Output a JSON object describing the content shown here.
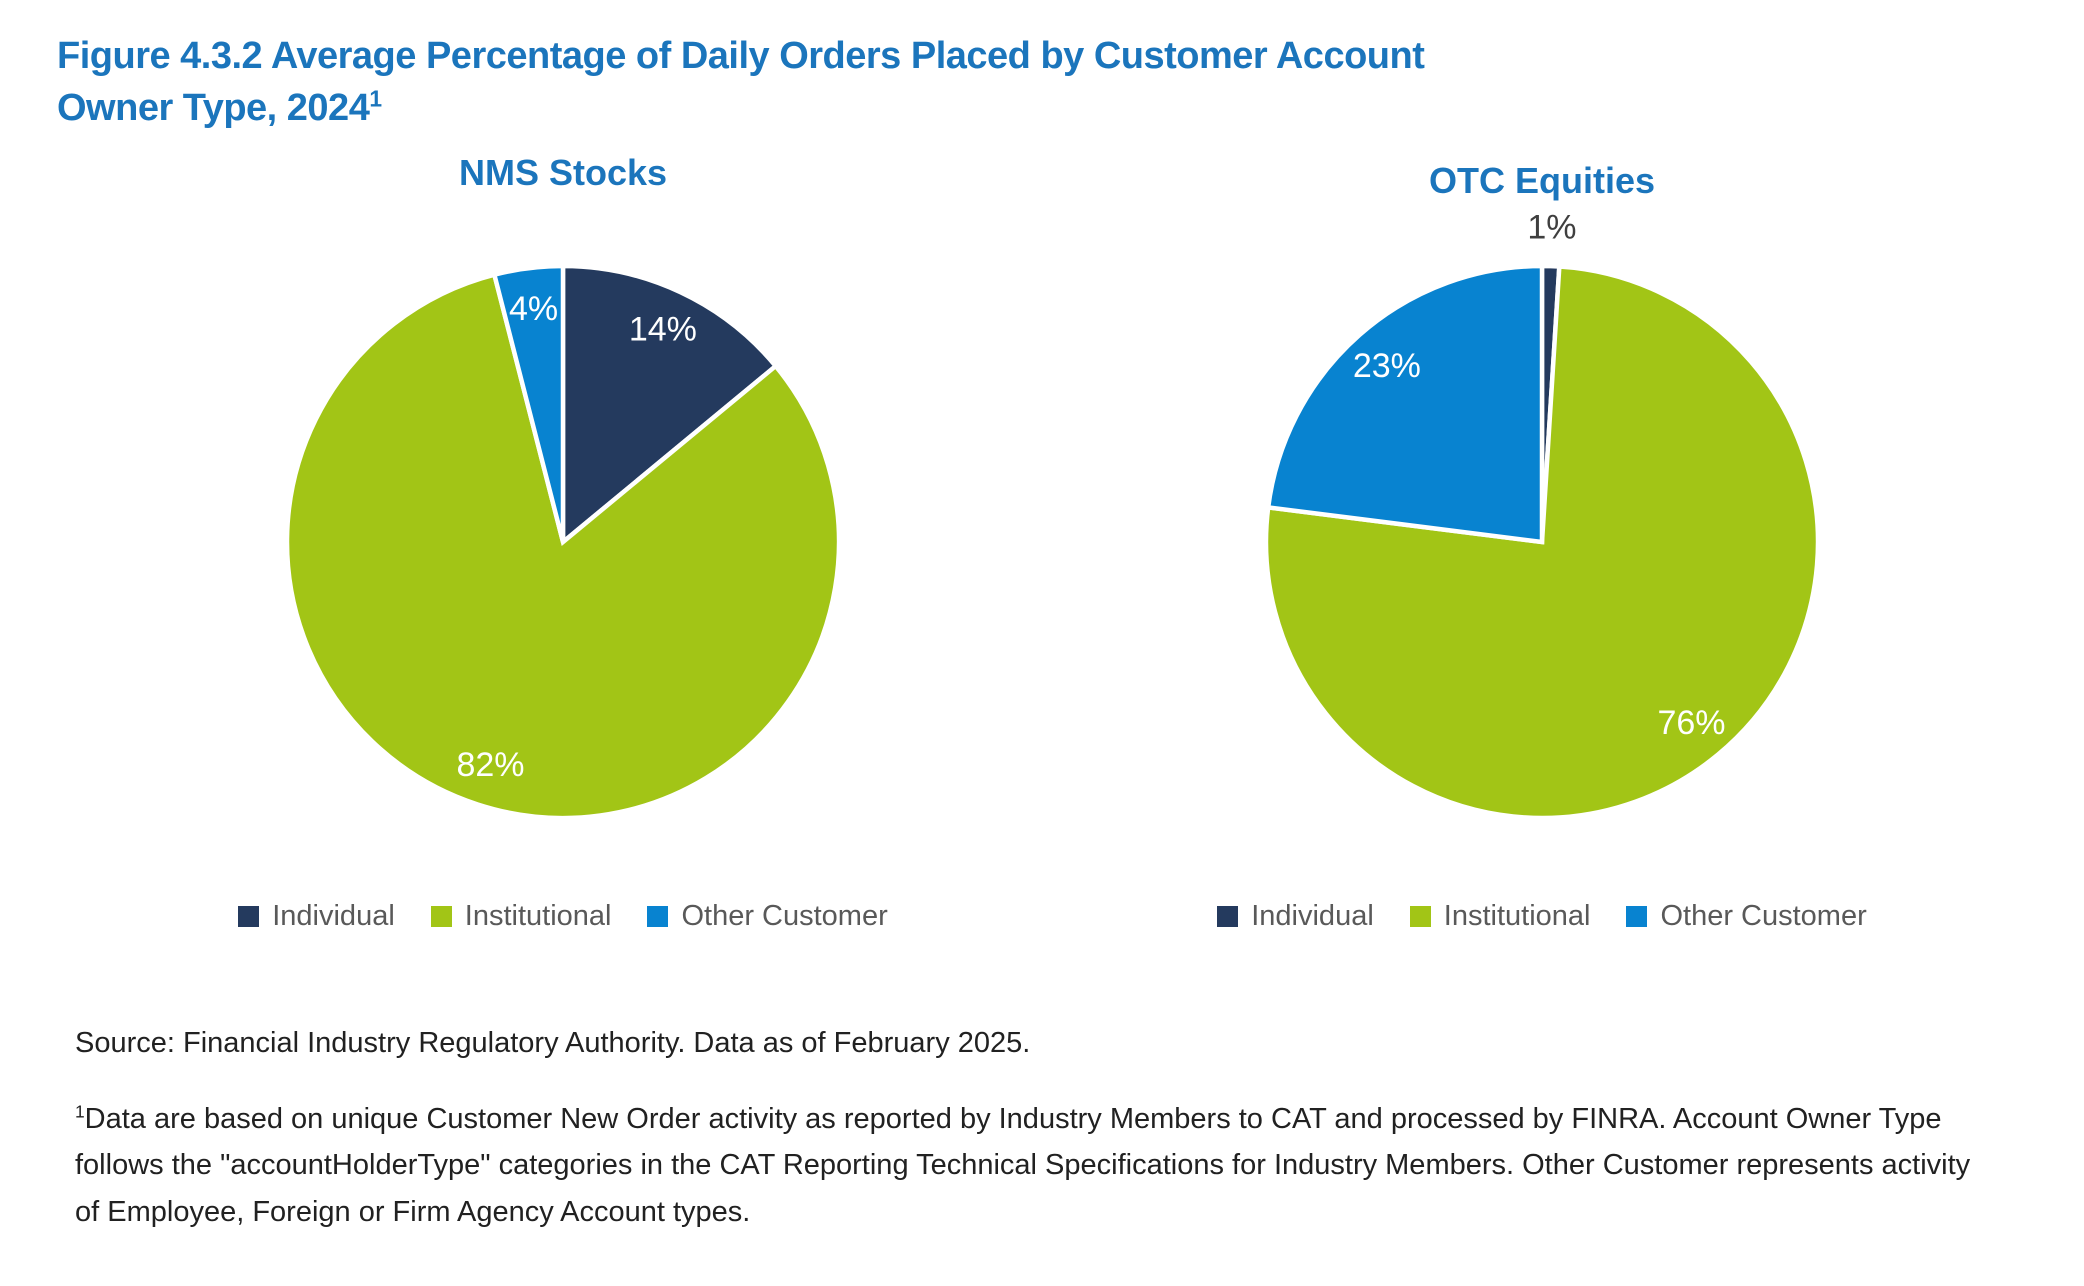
{
  "header": {
    "title_line1": "Figure 4.3.2 Average Percentage of Daily Orders Placed by Customer Account",
    "title_line2": "Owner Type, 2024",
    "title_superscript": "1"
  },
  "colors": {
    "title_blue": "#1B75BC",
    "individual": "#243A5E",
    "institutional": "#A2C516",
    "other_customer": "#0883D0",
    "slice_border": "#FFFFFF",
    "inside_label": "#FFFFFF",
    "outside_label": "#3F3F3F",
    "legend_text": "#595959",
    "note_text": "#212121"
  },
  "legend": {
    "items": [
      {
        "label": "Individual",
        "color": "#243A5E"
      },
      {
        "label": "Institutional",
        "color": "#A2C516"
      },
      {
        "label": "Other Customer",
        "color": "#0883D0"
      }
    ]
  },
  "chart_data": [
    {
      "type": "pie",
      "title": "NMS Stocks",
      "categories": [
        "Individual",
        "Institutional",
        "Other Customer"
      ],
      "values": [
        14,
        82,
        4
      ],
      "labels": [
        "14%",
        "82%",
        "4%"
      ],
      "colors": [
        "#243A5E",
        "#A2C516",
        "#0883D0"
      ],
      "start_angle_deg": 0,
      "direction": "clockwise",
      "label_layout": "inside at 0.85R in white; slices under 2% placed outside top in gray"
    },
    {
      "type": "pie",
      "title": "OTC Equities",
      "categories": [
        "Individual",
        "Institutional",
        "Other Customer"
      ],
      "values": [
        1,
        76,
        23
      ],
      "labels": [
        "1%",
        "76%",
        "23%"
      ],
      "colors": [
        "#243A5E",
        "#A2C516",
        "#0883D0"
      ],
      "start_angle_deg": 0,
      "direction": "clockwise",
      "label_layout": "inside at 0.85R in white; slices under 2% placed outside top in gray"
    }
  ],
  "notes": {
    "source": "Source: Financial Industry Regulatory Authority. Data as of February 2025.",
    "footnote_superscript": "1",
    "footnote_text": "Data are based on unique Customer New Order activity as reported by Industry Members to CAT and processed by FINRA. Account Owner Type follows the \"accountHolderType\" categories in the CAT Reporting Technical Specifications for Industry Members. Other Customer represents activity of Employee, Foreign or Firm Agency Account types."
  }
}
